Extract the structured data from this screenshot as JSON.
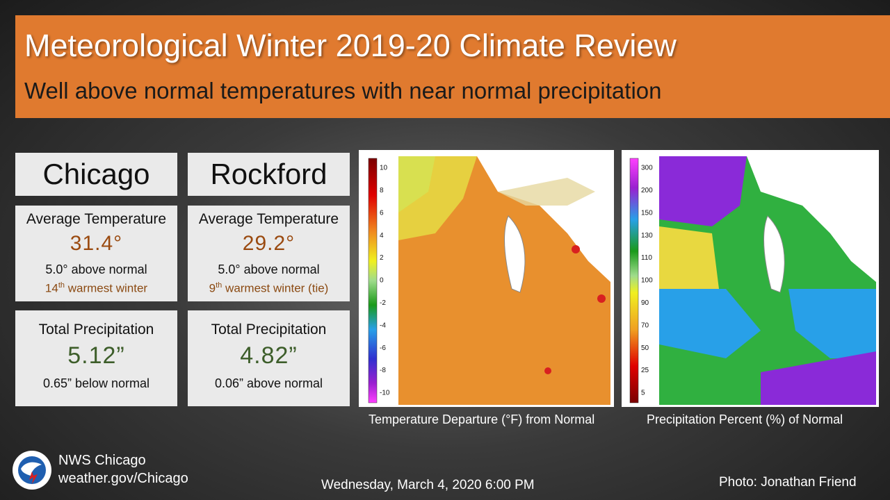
{
  "header": {
    "title": "Meteorological Winter 2019-20 Climate Review",
    "subtitle": "Well above normal temperatures with near normal precipitation"
  },
  "cities": [
    {
      "name": "Chicago",
      "temperature": {
        "label": "Average Temperature",
        "value": "31.4°",
        "departure": "5.0° above normal",
        "rank": "14",
        "rank_suffix": "th",
        "rank_text": " warmest winter"
      },
      "precipitation": {
        "label": "Total Precipitation",
        "value": "5.12”",
        "departure": "0.65” below normal"
      }
    },
    {
      "name": "Rockford",
      "temperature": {
        "label": "Average Temperature",
        "value": "29.2°",
        "departure": "5.0° above normal",
        "rank": "9",
        "rank_suffix": "th",
        "rank_text": " warmest winter (tie)"
      },
      "precipitation": {
        "label": "Total Precipitation",
        "value": "4.82”",
        "departure": "0.06” above normal"
      }
    }
  ],
  "maps": [
    {
      "caption": "Temperature Departure (°F)  from Normal",
      "scale": [
        "10",
        "8",
        "6",
        "4",
        "2",
        "0",
        "-2",
        "-4",
        "-6",
        "-8",
        "-10"
      ]
    },
    {
      "caption": "Precipitation Percent (%) of Normal",
      "scale": [
        "300",
        "200",
        "150",
        "130",
        "110",
        "100",
        "90",
        "70",
        "50",
        "25",
        "5"
      ]
    }
  ],
  "footer": {
    "office": "NWS Chicago",
    "website": "weather.gov/Chicago",
    "timestamp": "Wednesday, March 4, 2020 6:00 PM",
    "credit": "Photo: Jonathan Friend"
  }
}
